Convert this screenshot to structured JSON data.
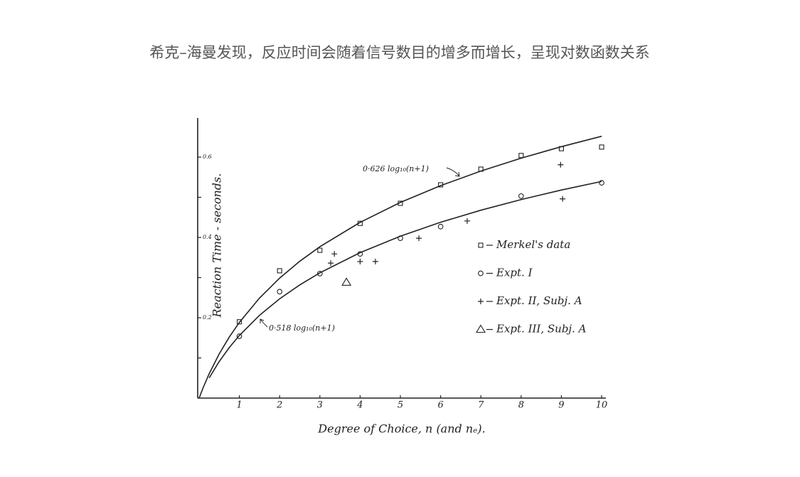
{
  "title": "希克–海曼发现，反应时间会随着信号数目的增多而增长，呈现对数函数关系",
  "chart_data": {
    "type": "scatter",
    "x_label": "Degree of Choice, n   (and nₑ).",
    "y_label": "Reaction Time - seconds.",
    "xlim": [
      0,
      10.1
    ],
    "ylim": [
      0,
      0.7
    ],
    "xticks": [
      1,
      2,
      3,
      4,
      5,
      6,
      7,
      8,
      9,
      10
    ],
    "yticks": [
      0.2,
      0.4,
      0.6
    ],
    "yminor_ticks": [
      0.1,
      0.3,
      0.5
    ],
    "color": "#222222",
    "series": [
      {
        "name": "0·626 log₁₀(n+1)",
        "kind": "line",
        "x": [
          0,
          0.1,
          0.25,
          0.5,
          0.75,
          1,
          1.5,
          2,
          2.5,
          3,
          4,
          5,
          6,
          7,
          8,
          9,
          10
        ],
        "values": [
          0,
          0.0259,
          0.0607,
          0.1102,
          0.1521,
          0.1884,
          0.2491,
          0.2987,
          0.3406,
          0.3769,
          0.4376,
          0.4871,
          0.529,
          0.5653,
          0.5974,
          0.626,
          0.6519
        ]
      },
      {
        "name": "0·518 log₁₀(n+1)",
        "kind": "line",
        "x": [
          0.25,
          0.5,
          0.75,
          1,
          1.5,
          2,
          2.5,
          3,
          4,
          5,
          6,
          7,
          8,
          9,
          10
        ],
        "values": [
          0.0502,
          0.0912,
          0.1259,
          0.1559,
          0.2061,
          0.2471,
          0.2818,
          0.3119,
          0.3621,
          0.4031,
          0.4378,
          0.4678,
          0.4943,
          0.518,
          0.5394
        ]
      },
      {
        "name": "Merkel's data",
        "kind": "points",
        "marker": "square",
        "x": [
          1,
          2,
          3,
          4,
          5,
          6,
          7,
          8,
          9,
          10
        ],
        "values": [
          0.19,
          0.317,
          0.368,
          0.435,
          0.485,
          0.531,
          0.57,
          0.604,
          0.621,
          0.625
        ]
      },
      {
        "name": "Expt. I",
        "kind": "points",
        "marker": "circle",
        "x": [
          1,
          2,
          3,
          4,
          5,
          6,
          8,
          10
        ],
        "values": [
          0.154,
          0.265,
          0.31,
          0.359,
          0.398,
          0.427,
          0.503,
          0.536
        ]
      },
      {
        "name": "Expt. II, Subj. A",
        "kind": "points",
        "marker": "plus",
        "x": [
          3.27,
          3.36,
          4,
          4.38,
          5.46,
          6.66,
          8.98,
          9.03
        ],
        "values": [
          0.336,
          0.359,
          0.34,
          0.34,
          0.398,
          0.441,
          0.581,
          0.496
        ]
      },
      {
        "name": "Expt. III, Subj. A",
        "kind": "points",
        "marker": "triangle",
        "x": [
          3.66
        ],
        "values": [
          0.288
        ]
      }
    ]
  }
}
